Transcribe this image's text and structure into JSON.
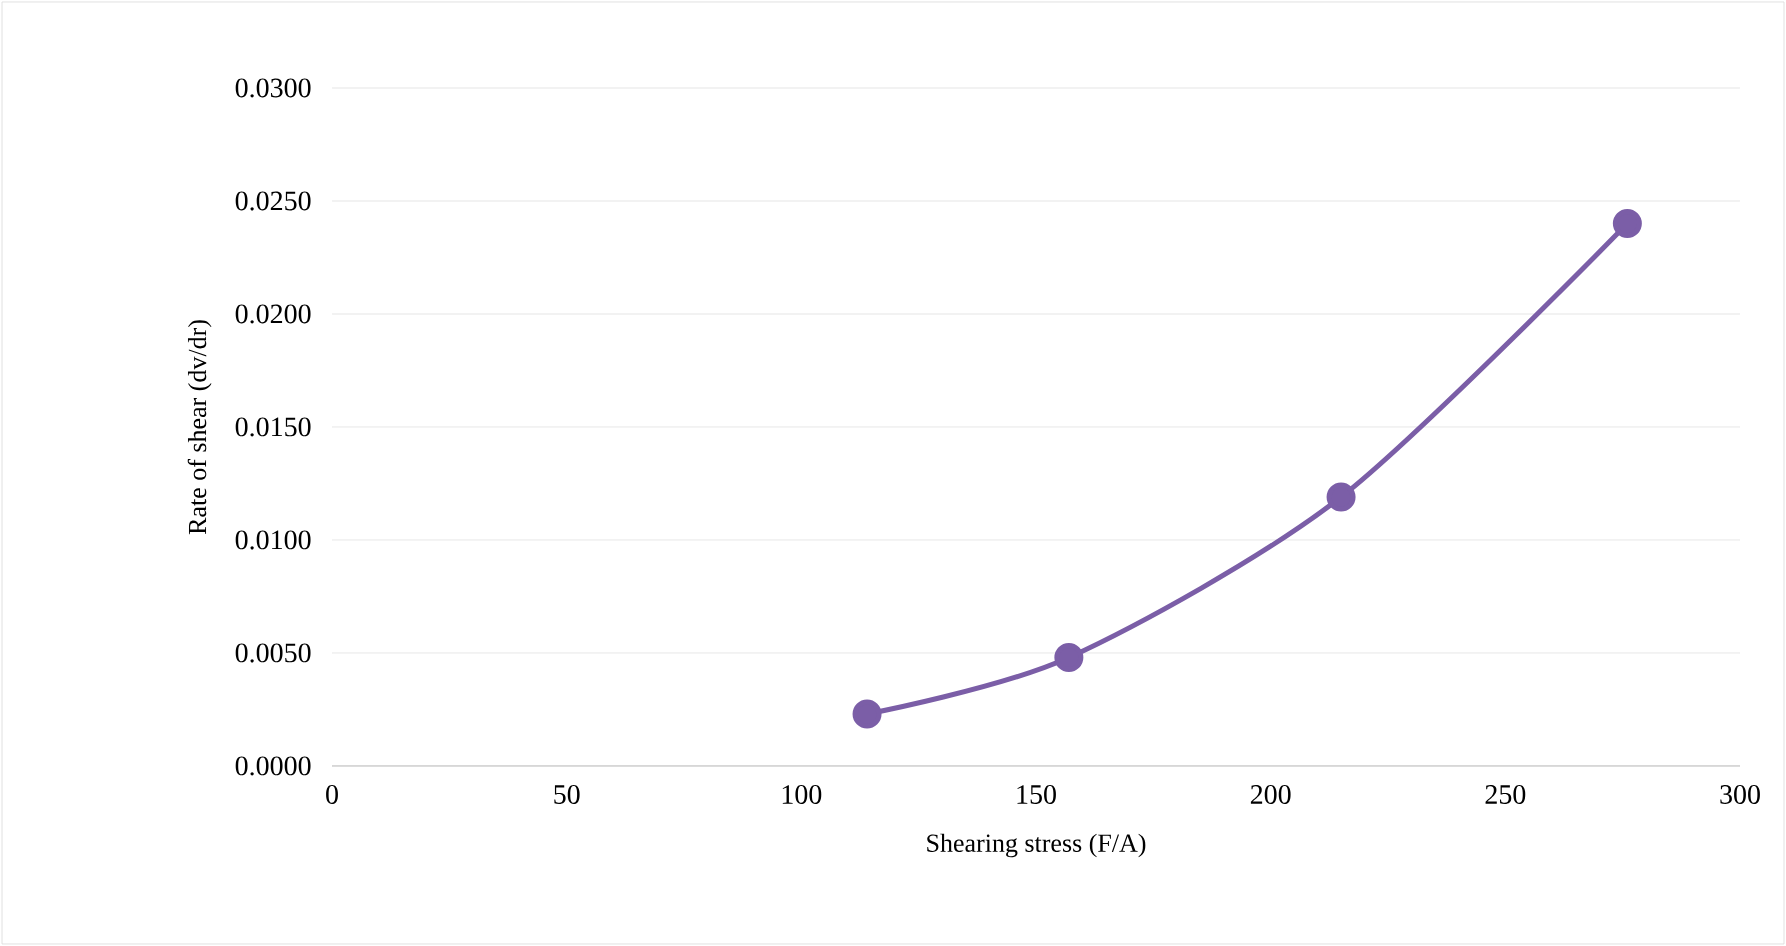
{
  "chart_data": {
    "type": "line",
    "xlabel": "Shearing stress (F/A)",
    "ylabel": "Rate of shear (dv/dr)",
    "x": [
      114,
      157,
      215,
      276
    ],
    "series": [
      {
        "color": "#7b5ea7",
        "values": [
          0.0023,
          0.0048,
          0.0119,
          0.024
        ]
      }
    ],
    "xlim": [
      0,
      300
    ],
    "xticks": [
      0,
      50,
      100,
      150,
      200,
      250,
      300
    ],
    "ylim": [
      0,
      0.03
    ],
    "yticks": [
      {
        "value": 0,
        "label": "0.0000"
      },
      {
        "value": 0.005,
        "label": "0.0050"
      },
      {
        "value": 0.01,
        "label": "0.0100"
      },
      {
        "value": 0.015,
        "label": "0.0150"
      },
      {
        "value": 0.02,
        "label": "0.0200"
      },
      {
        "value": 0.025,
        "label": "0.0250"
      },
      {
        "value": 0.03,
        "label": "0.0300"
      }
    ],
    "grid": "y",
    "marker": "circle",
    "line_style": "solid"
  }
}
